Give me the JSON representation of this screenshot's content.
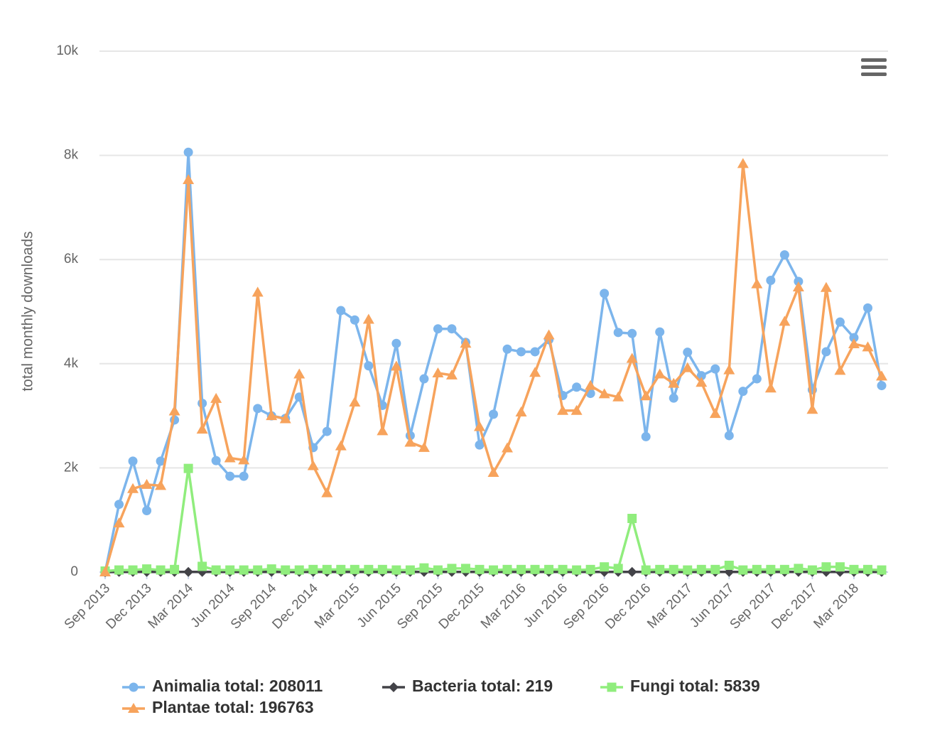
{
  "chart_data": {
    "type": "line",
    "y_label": "total monthly downloads",
    "categories": [
      "Sep 2013",
      null,
      null,
      "Dec 2013",
      null,
      null,
      "Mar 2014",
      null,
      null,
      "Jun 2014",
      null,
      null,
      "Sep 2014",
      null,
      null,
      "Dec 2014",
      null,
      null,
      "Mar 2015",
      null,
      null,
      "Jun 2015",
      null,
      null,
      "Sep 2015",
      null,
      null,
      "Dec 2015",
      null,
      null,
      "Mar 2016",
      null,
      null,
      "Jun 2016",
      null,
      null,
      "Sep 2016",
      null,
      null,
      "Dec 2016",
      null,
      null,
      "Mar 2017",
      null,
      null,
      "Jun 2017",
      null,
      null,
      "Sep 2017",
      null,
      null,
      "Dec 2017",
      null,
      null,
      "Mar 2018",
      null,
      null
    ],
    "series": [
      {
        "name": "Animalia total: 208011",
        "color": "#7cb5ec",
        "marker": "circle",
        "values": [
          0,
          1300,
          2130,
          1180,
          2130,
          2920,
          8060,
          3240,
          2140,
          1840,
          1840,
          3140,
          3000,
          2950,
          3360,
          2390,
          2700,
          5020,
          4840,
          3960,
          3200,
          4390,
          2620,
          3710,
          4670,
          4670,
          4410,
          2440,
          3030,
          4280,
          4230,
          4230,
          4460,
          3390,
          3550,
          3430,
          5350,
          4600,
          4580,
          2600,
          4610,
          3340,
          4220,
          3770,
          3900,
          2620,
          3470,
          3710,
          5600,
          6090,
          5580,
          3500,
          4230,
          4800,
          4500,
          5070,
          3580
        ]
      },
      {
        "name": "Bacteria total: 219",
        "color": "#434348",
        "marker": "diamond",
        "values": [
          0,
          4,
          4,
          4,
          4,
          4,
          4,
          4,
          4,
          4,
          4,
          4,
          4,
          4,
          4,
          4,
          4,
          4,
          4,
          4,
          4,
          4,
          4,
          4,
          4,
          4,
          4,
          4,
          4,
          4,
          4,
          4,
          4,
          4,
          4,
          4,
          4,
          4,
          4,
          4,
          4,
          4,
          4,
          4,
          4,
          4,
          4,
          4,
          4,
          4,
          4,
          4,
          4,
          4,
          4,
          4,
          3
        ]
      },
      {
        "name": "Fungi total: 5839",
        "color": "#90ed7d",
        "marker": "square",
        "values": [
          20,
          40,
          40,
          60,
          40,
          50,
          1990,
          110,
          40,
          40,
          40,
          40,
          60,
          40,
          40,
          50,
          50,
          50,
          50,
          50,
          50,
          40,
          40,
          80,
          40,
          70,
          70,
          50,
          40,
          50,
          50,
          50,
          50,
          50,
          40,
          50,
          100,
          70,
          1030,
          40,
          50,
          50,
          40,
          50,
          50,
          130,
          40,
          50,
          50,
          50,
          70,
          40,
          100,
          100,
          50,
          50,
          40
        ]
      },
      {
        "name": "Plantae total: 196763",
        "color": "#f7a35c",
        "marker": "triangle",
        "values": [
          0,
          940,
          1600,
          1680,
          1660,
          3090,
          7530,
          2740,
          3330,
          2190,
          2150,
          5370,
          3000,
          2940,
          3800,
          2040,
          1520,
          2420,
          3260,
          4850,
          2710,
          3950,
          2490,
          2390,
          3820,
          3780,
          4390,
          2790,
          1910,
          2380,
          3070,
          3830,
          4550,
          3100,
          3100,
          3580,
          3420,
          3360,
          4100,
          3380,
          3800,
          3620,
          3920,
          3640,
          3040,
          3880,
          7840,
          5530,
          3530,
          4810,
          5470,
          3120,
          5460,
          3870,
          4380,
          4320,
          3760
        ]
      }
    ],
    "ylim": [
      0,
      10000
    ],
    "yticks": [
      0,
      {
        "value": 2000,
        "label": "2k"
      },
      {
        "value": 4000,
        "label": "4k"
      },
      {
        "value": 6000,
        "label": "6k"
      },
      {
        "value": 8000,
        "label": "8k"
      },
      {
        "value": 10000,
        "label": "10k"
      }
    ],
    "grid": true
  }
}
